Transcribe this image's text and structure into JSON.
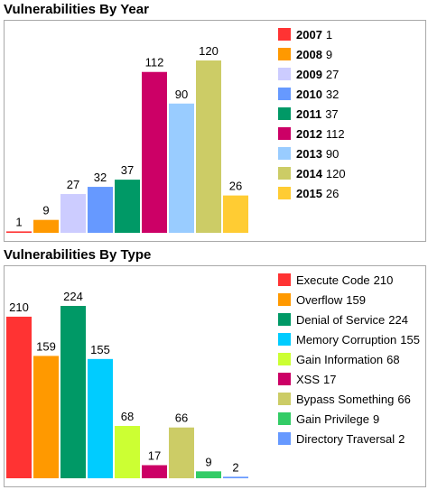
{
  "year_section": {
    "title": "Vulnerabilities By Year"
  },
  "type_section": {
    "title": "Vulnerabilities By Type"
  },
  "chart_data": [
    {
      "type": "bar",
      "title": "Vulnerabilities By Year",
      "categories": [
        "2007",
        "2008",
        "2009",
        "2010",
        "2011",
        "2012",
        "2013",
        "2014",
        "2015"
      ],
      "values": [
        1,
        9,
        27,
        32,
        37,
        112,
        90,
        120,
        26
      ],
      "colors": [
        "#ff3333",
        "#ff9900",
        "#ccccff",
        "#6699ff",
        "#009966",
        "#cc0066",
        "#99ccff",
        "#cccc66",
        "#ffcc33"
      ],
      "legend_bold_category": true,
      "ylim": [
        0,
        120
      ],
      "grid": false,
      "legend_position": "right"
    },
    {
      "type": "bar",
      "title": "Vulnerabilities By Type",
      "categories": [
        "Execute Code",
        "Overflow",
        "Denial of Service",
        "Memory Corruption",
        "Gain Information",
        "XSS",
        "Bypass Something",
        "Gain Privilege",
        "Directory Traversal"
      ],
      "values": [
        210,
        159,
        224,
        155,
        68,
        17,
        66,
        9,
        2
      ],
      "colors": [
        "#ff3333",
        "#ff9900",
        "#009966",
        "#00ccff",
        "#ccff33",
        "#cc0066",
        "#cccc66",
        "#33cc66",
        "#6699ff"
      ],
      "legend_bold_category": false,
      "ylim": [
        0,
        224
      ],
      "grid": false,
      "legend_position": "right"
    }
  ]
}
